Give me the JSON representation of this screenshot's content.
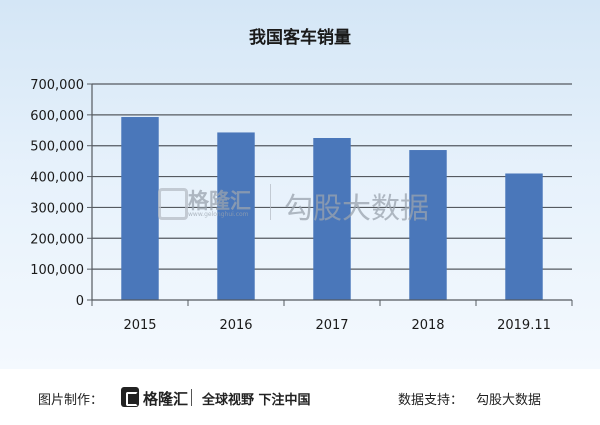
{
  "chart_data": {
    "type": "bar",
    "title": "我国客车销量",
    "categories": [
      "2015",
      "2016",
      "2017",
      "2018",
      "2019.11"
    ],
    "values": [
      593000,
      543000,
      525000,
      486000,
      410000
    ],
    "ylim": [
      0,
      700000
    ],
    "yticks": [
      "0",
      "100,000",
      "200,000",
      "300,000",
      "400,000",
      "500,000",
      "600,000",
      "700,000"
    ],
    "grid": true,
    "legend": "none",
    "bar_color": "#4a77ba"
  },
  "watermark": {
    "brand": "格隆汇",
    "brand_sub": "www.gelonghui.com",
    "product": "勾股大数据"
  },
  "footer": {
    "credit_label": "图片制作：",
    "brand": "格隆汇",
    "slogan": "全球视野 下注中国",
    "source_label": "数据支持：",
    "source": "勾股大数据"
  }
}
